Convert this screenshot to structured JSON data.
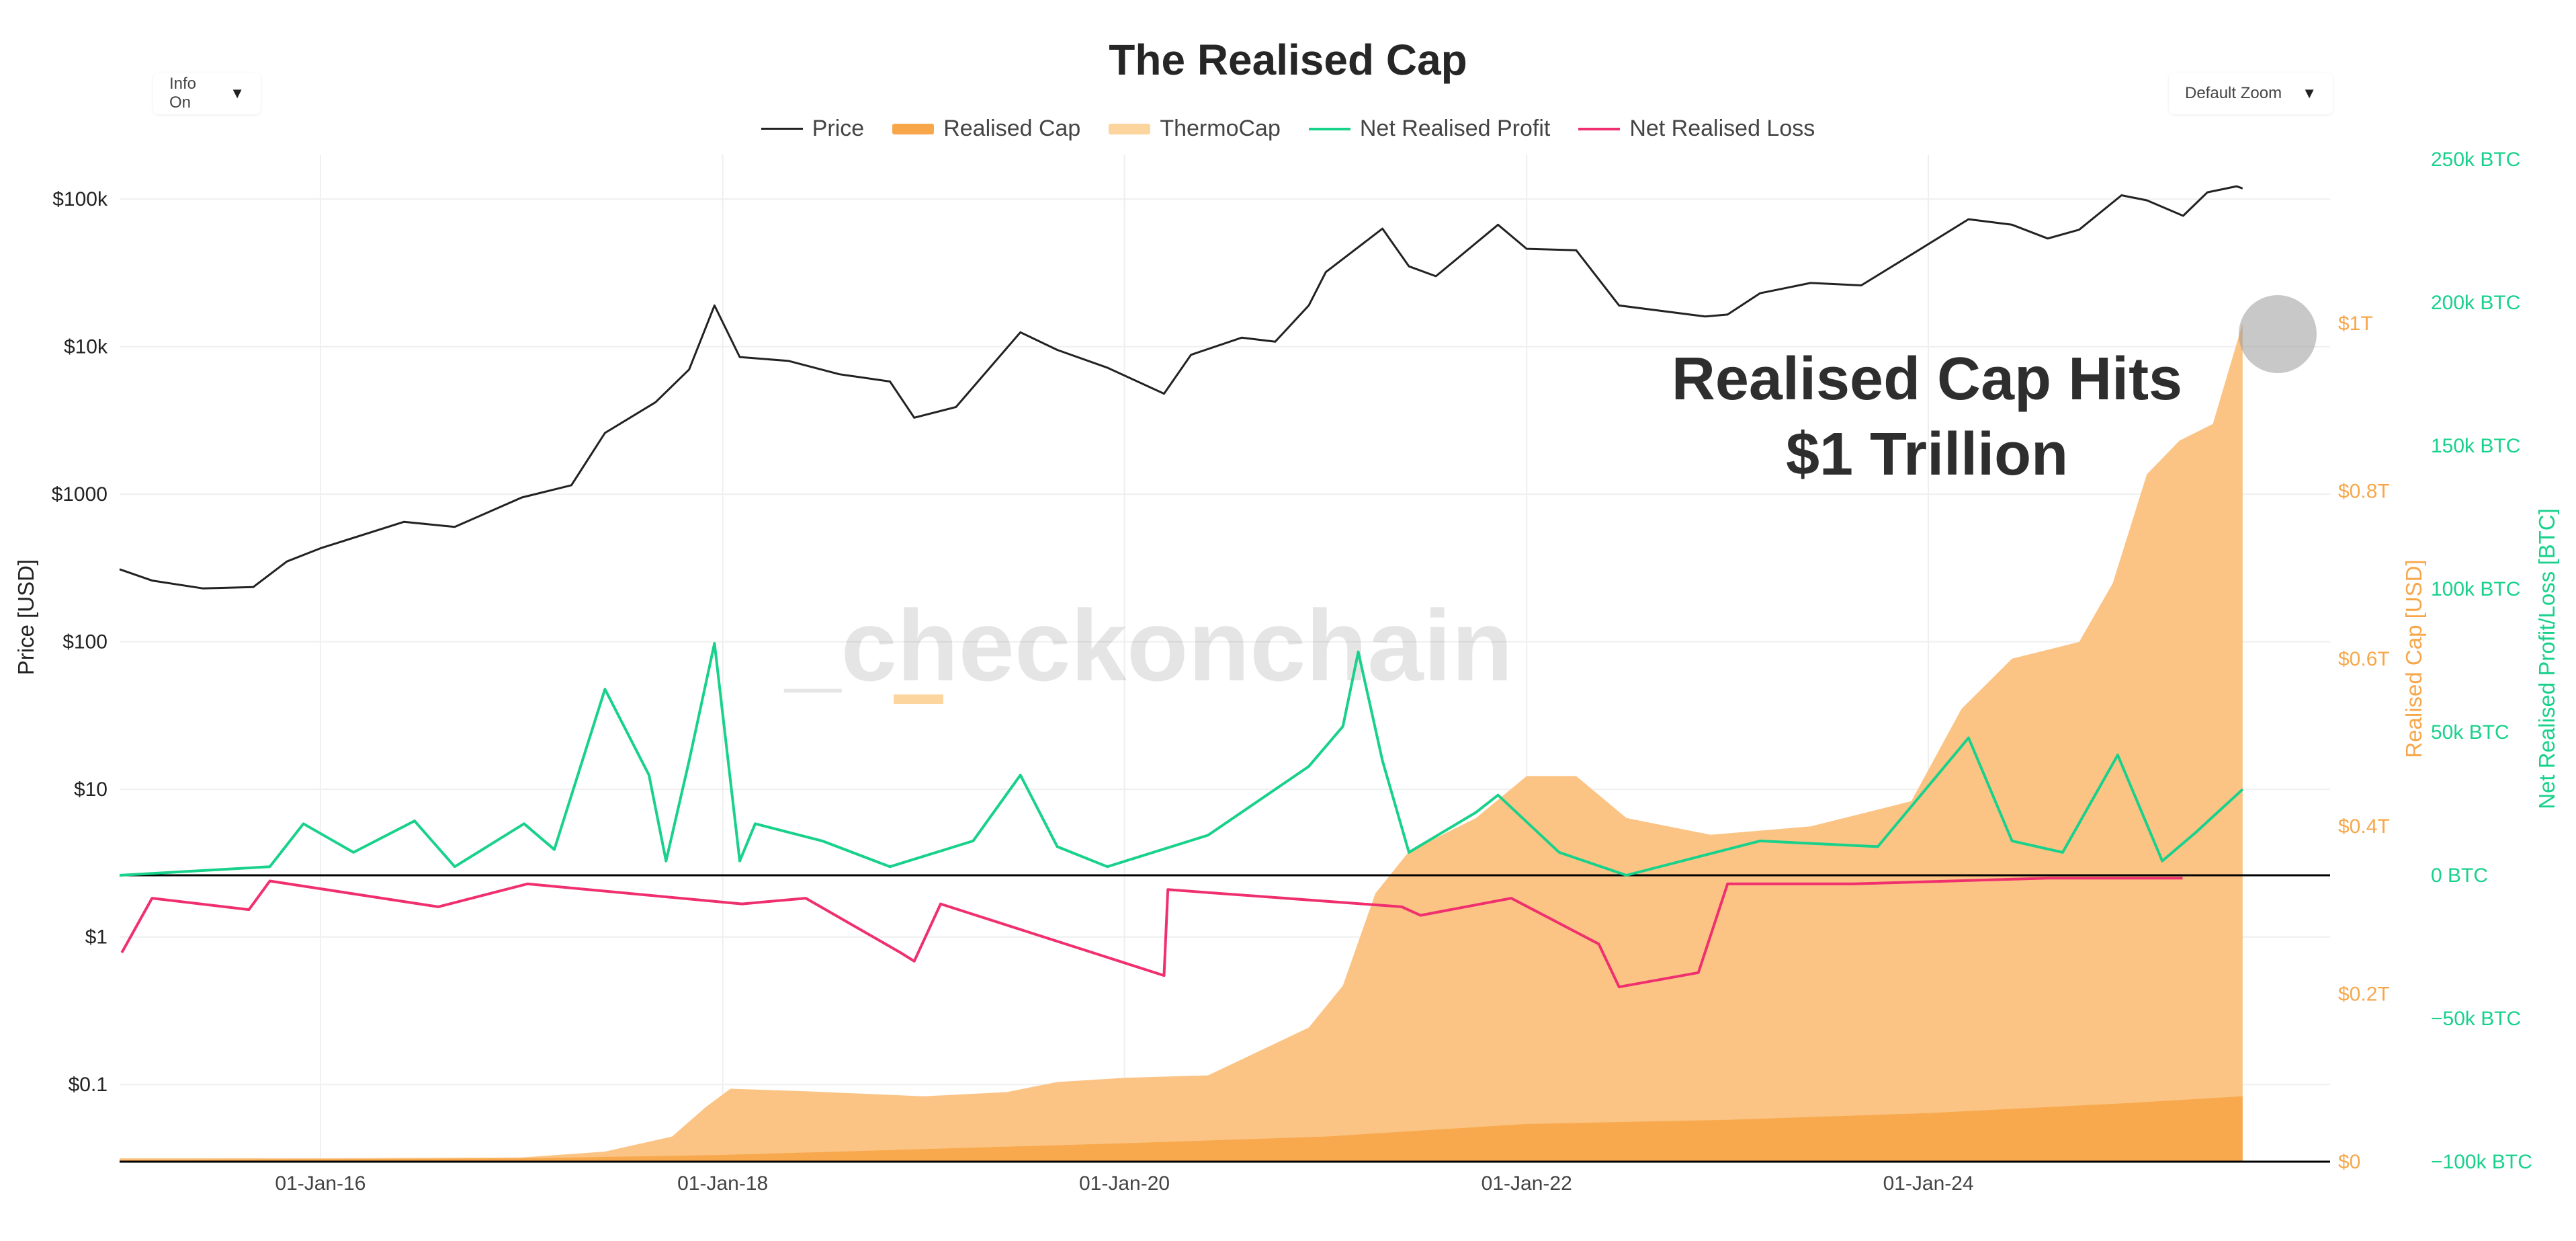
{
  "title": "The Realised Cap",
  "controls": {
    "info_label": "Info On",
    "zoom_label": "Default Zoom",
    "caret_icon": "caret-down-icon"
  },
  "legend": [
    {
      "label": "Price",
      "color": "#222222",
      "kind": "line"
    },
    {
      "label": "Realised Cap",
      "color": "#f7a74a",
      "kind": "fill"
    },
    {
      "label": "ThermoCap",
      "color": "#fcd49d",
      "kind": "fill"
    },
    {
      "label": "Net Realised Profit",
      "color": "#18d18b",
      "kind": "line"
    },
    {
      "label": "Net Realised Loss",
      "color": "#f0306e",
      "kind": "line"
    }
  ],
  "watermark": "_checkonchain",
  "annotation": {
    "line1": "Realised Cap Hits",
    "line2": "$1 Trillion"
  },
  "chart_data": {
    "type": "line",
    "x_ticks": [
      "01-Jan-16",
      "01-Jan-18",
      "01-Jan-20",
      "01-Jan-22",
      "01-Jan-24"
    ],
    "x_range": [
      "2015-01-01",
      "2025-12-31"
    ],
    "axes": {
      "left": {
        "label": "Price [USD]",
        "scale": "log",
        "range": [
          0.03,
          200000
        ],
        "ticks": [
          "$0.1",
          "$1",
          "$10",
          "$100",
          "$1000",
          "$10k",
          "$100k"
        ],
        "tick_values": [
          0.1,
          1,
          10,
          100,
          1000,
          10000,
          100000
        ],
        "color": "#222222"
      },
      "right1": {
        "label": "Realised Cap [USD]",
        "scale": "linear",
        "ticks": [
          "$0",
          "$0.2T",
          "$0.4T",
          "$0.6T",
          "$0.8T",
          "$1T"
        ],
        "tick_values": [
          0,
          0.2,
          0.4,
          0.6,
          0.8,
          1.0
        ],
        "color": "#f7a74a"
      },
      "right2": {
        "label": "Net Realised Profit/Loss [BTC]",
        "scale": "linear",
        "ticks": [
          "−100k BTC",
          "−50k BTC",
          "0 BTC",
          "50k BTC",
          "100k BTC",
          "150k BTC",
          "200k BTC",
          "250k BTC"
        ],
        "tick_values": [
          -100000,
          -50000,
          0,
          50000,
          100000,
          150000,
          200000,
          250000
        ],
        "color": "#18d18b"
      }
    },
    "grid": true,
    "legend_position": "top",
    "series": [
      {
        "name": "Price",
        "axis": "left",
        "color": "#222222",
        "points": [
          [
            "2015-01-01",
            310
          ],
          [
            "2015-03-01",
            260
          ],
          [
            "2015-06-01",
            230
          ],
          [
            "2015-09-01",
            235
          ],
          [
            "2015-11-01",
            350
          ],
          [
            "2016-01-01",
            430
          ],
          [
            "2016-06-01",
            650
          ],
          [
            "2016-09-01",
            600
          ],
          [
            "2017-01-01",
            950
          ],
          [
            "2017-04-01",
            1150
          ],
          [
            "2017-06-01",
            2600
          ],
          [
            "2017-09-01",
            4200
          ],
          [
            "2017-11-01",
            7000
          ],
          [
            "2017-12-17",
            19000
          ],
          [
            "2018-02-01",
            8500
          ],
          [
            "2018-05-01",
            8000
          ],
          [
            "2018-08-01",
            6500
          ],
          [
            "2018-11-01",
            5800
          ],
          [
            "2018-12-15",
            3300
          ],
          [
            "2019-03-01",
            3900
          ],
          [
            "2019-06-26",
            12500
          ],
          [
            "2019-09-01",
            9500
          ],
          [
            "2019-12-01",
            7200
          ],
          [
            "2020-03-13",
            4800
          ],
          [
            "2020-05-01",
            8800
          ],
          [
            "2020-08-01",
            11500
          ],
          [
            "2020-10-01",
            10800
          ],
          [
            "2020-12-01",
            19000
          ],
          [
            "2021-01-01",
            32000
          ],
          [
            "2021-04-14",
            63000
          ],
          [
            "2021-06-01",
            35000
          ],
          [
            "2021-07-20",
            30000
          ],
          [
            "2021-11-10",
            67000
          ],
          [
            "2022-01-01",
            46000
          ],
          [
            "2022-04-01",
            45000
          ],
          [
            "2022-06-18",
            19000
          ],
          [
            "2022-11-21",
            16000
          ],
          [
            "2023-01-01",
            16500
          ],
          [
            "2023-03-01",
            23000
          ],
          [
            "2023-06-01",
            27000
          ],
          [
            "2023-09-01",
            26000
          ],
          [
            "2023-12-01",
            42000
          ],
          [
            "2024-03-14",
            73000
          ],
          [
            "2024-06-01",
            67000
          ],
          [
            "2024-08-05",
            54000
          ],
          [
            "2024-10-01",
            62000
          ],
          [
            "2024-12-17",
            106000
          ],
          [
            "2025-02-01",
            98000
          ],
          [
            "2025-04-08",
            77000
          ],
          [
            "2025-05-22",
            111000
          ],
          [
            "2025-07-14",
            122000
          ],
          [
            "2025-07-25",
            118000
          ]
        ]
      },
      {
        "name": "Realised Cap",
        "axis": "right1",
        "color": "#f7a74a",
        "points": [
          [
            "2015-01-01",
            0.004
          ],
          [
            "2016-01-01",
            0.004
          ],
          [
            "2017-01-01",
            0.005
          ],
          [
            "2017-06-01",
            0.012
          ],
          [
            "2017-10-01",
            0.03
          ],
          [
            "2017-12-01",
            0.065
          ],
          [
            "2018-01-15",
            0.087
          ],
          [
            "2018-06-01",
            0.084
          ],
          [
            "2019-01-01",
            0.078
          ],
          [
            "2019-06-01",
            0.083
          ],
          [
            "2019-09-01",
            0.095
          ],
          [
            "2020-01-01",
            0.1
          ],
          [
            "2020-06-01",
            0.103
          ],
          [
            "2020-12-01",
            0.16
          ],
          [
            "2021-02-01",
            0.21
          ],
          [
            "2021-04-01",
            0.32
          ],
          [
            "2021-06-01",
            0.37
          ],
          [
            "2021-10-01",
            0.41
          ],
          [
            "2022-01-01",
            0.46
          ],
          [
            "2022-04-01",
            0.46
          ],
          [
            "2022-07-01",
            0.41
          ],
          [
            "2022-12-01",
            0.39
          ],
          [
            "2023-06-01",
            0.4
          ],
          [
            "2023-12-01",
            0.43
          ],
          [
            "2024-03-01",
            0.54
          ],
          [
            "2024-06-01",
            0.6
          ],
          [
            "2024-10-01",
            0.62
          ],
          [
            "2024-12-01",
            0.69
          ],
          [
            "2025-02-01",
            0.82
          ],
          [
            "2025-04-01",
            0.86
          ],
          [
            "2025-06-01",
            0.88
          ],
          [
            "2025-07-25",
            1.0
          ]
        ]
      },
      {
        "name": "ThermoCap",
        "axis": "right1",
        "color": "#fcd49d",
        "points": [
          [
            "2015-01-01",
            0.002
          ],
          [
            "2016-01-01",
            0.003
          ],
          [
            "2017-01-01",
            0.004
          ],
          [
            "2018-01-01",
            0.008
          ],
          [
            "2019-01-01",
            0.015
          ],
          [
            "2020-01-01",
            0.022
          ],
          [
            "2021-01-01",
            0.03
          ],
          [
            "2022-01-01",
            0.045
          ],
          [
            "2023-01-01",
            0.05
          ],
          [
            "2024-01-01",
            0.058
          ],
          [
            "2025-01-01",
            0.07
          ],
          [
            "2025-07-25",
            0.078
          ]
        ]
      },
      {
        "name": "Net Realised Profit",
        "axis": "right2",
        "color": "#18d18b",
        "points": [
          [
            "2015-01-01",
            0
          ],
          [
            "2015-10-01",
            3000
          ],
          [
            "2015-12-01",
            18000
          ],
          [
            "2016-03-01",
            8000
          ],
          [
            "2016-06-20",
            19000
          ],
          [
            "2016-09-01",
            3000
          ],
          [
            "2017-01-05",
            18000
          ],
          [
            "2017-03-01",
            9000
          ],
          [
            "2017-06-01",
            65000
          ],
          [
            "2017-08-20",
            35000
          ],
          [
            "2017-09-20",
            5000
          ],
          [
            "2017-11-01",
            40000
          ],
          [
            "2017-12-17",
            81000
          ],
          [
            "2018-02-01",
            5000
          ],
          [
            "2018-03-01",
            18000
          ],
          [
            "2018-07-01",
            12000
          ],
          [
            "2018-11-01",
            3000
          ],
          [
            "2019-04-01",
            12000
          ],
          [
            "2019-06-26",
            35000
          ],
          [
            "2019-09-01",
            10000
          ],
          [
            "2019-12-01",
            3000
          ],
          [
            "2020-06-01",
            14000
          ],
          [
            "2020-12-01",
            38000
          ],
          [
            "2021-02-01",
            52000
          ],
          [
            "2021-03-01",
            78000
          ],
          [
            "2021-04-14",
            40000
          ],
          [
            "2021-06-01",
            8000
          ],
          [
            "2021-10-01",
            22000
          ],
          [
            "2021-11-10",
            28000
          ],
          [
            "2022-03-01",
            8000
          ],
          [
            "2022-07-01",
            0
          ],
          [
            "2023-03-01",
            12000
          ],
          [
            "2023-10-01",
            10000
          ],
          [
            "2024-03-14",
            48000
          ],
          [
            "2024-06-01",
            12000
          ],
          [
            "2024-09-01",
            8000
          ],
          [
            "2024-12-10",
            42000
          ],
          [
            "2025-03-01",
            5000
          ],
          [
            "2025-05-01",
            15000
          ],
          [
            "2025-07-25",
            30000
          ]
        ]
      },
      {
        "name": "Net Realised Loss",
        "axis": "right2",
        "color": "#f0306e",
        "points": [
          [
            "2015-01-05",
            -27000
          ],
          [
            "2015-03-01",
            -8000
          ],
          [
            "2015-08-24",
            -12000
          ],
          [
            "2015-10-01",
            -2000
          ],
          [
            "2016-08-02",
            -11000
          ],
          [
            "2017-01-11",
            -3000
          ],
          [
            "2018-02-05",
            -10000
          ],
          [
            "2018-06-01",
            -8000
          ],
          [
            "2018-11-20",
            -27000
          ],
          [
            "2018-12-15",
            -30000
          ],
          [
            "2019-02-01",
            -10000
          ],
          [
            "2020-03-13",
            -35000
          ],
          [
            "2020-03-20",
            -5000
          ],
          [
            "2021-05-19",
            -11000
          ],
          [
            "2021-06-22",
            -14000
          ],
          [
            "2021-12-04",
            -8000
          ],
          [
            "2022-05-12",
            -24000
          ],
          [
            "2022-06-18",
            -39000
          ],
          [
            "2022-11-09",
            -34000
          ],
          [
            "2023-01-01",
            -3000
          ],
          [
            "2023-08-17",
            -3000
          ],
          [
            "2024-08-05",
            -1000
          ],
          [
            "2025-04-07",
            -1000
          ]
        ]
      }
    ]
  }
}
